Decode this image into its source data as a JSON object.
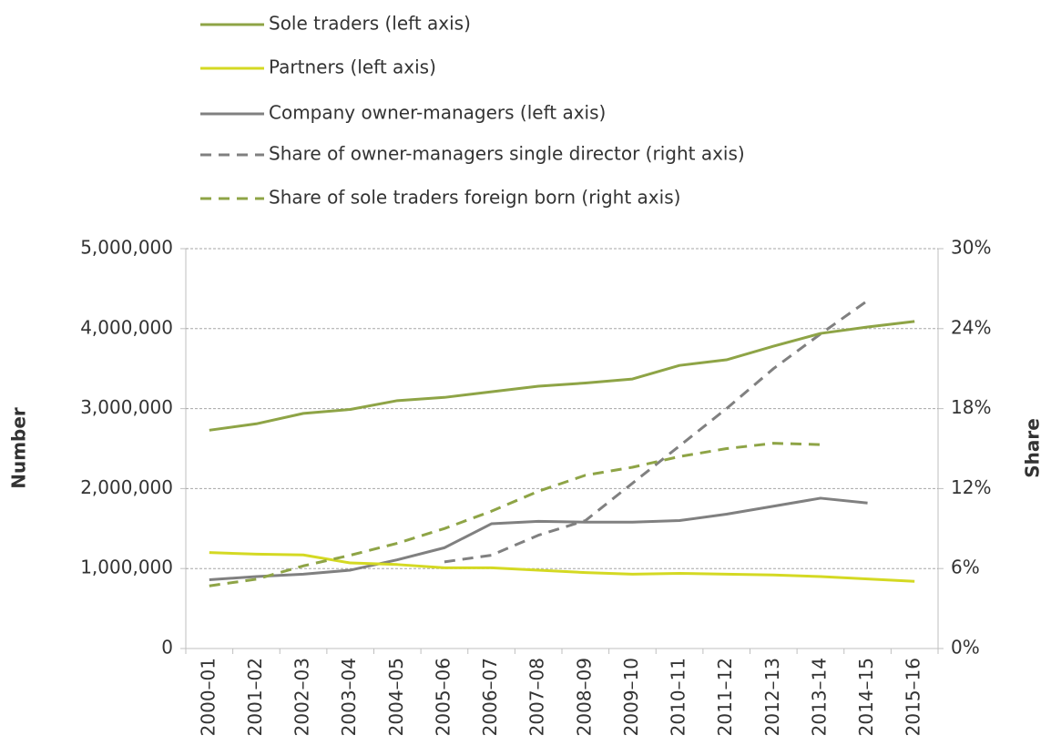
{
  "chart_data": {
    "type": "line",
    "y_label": "Number",
    "y2_label": "Share",
    "categories": [
      "2000–01",
      "2001–02",
      "2002–03",
      "2003–04",
      "2004–05",
      "2005–06",
      "2006–07",
      "2007–08",
      "2008–09",
      "2009–10",
      "2010–11",
      "2011–12",
      "2012–13",
      "2013–14",
      "2014–15",
      "2015–16"
    ],
    "ylim": [
      0,
      5000000
    ],
    "yticks": [
      0,
      {
        "value": 1000000,
        "label": "1,000,000"
      },
      {
        "value": 2000000,
        "label": "2,000,000"
      },
      {
        "value": 3000000,
        "label": "3,000,000"
      },
      {
        "value": 4000000,
        "label": "4,000,000"
      },
      {
        "value": 5000000,
        "label": "5,000,000"
      }
    ],
    "y2lim": [
      0,
      30
    ],
    "y2ticks": [
      {
        "value": 0,
        "label": "0%"
      },
      {
        "value": 6,
        "label": "6%"
      },
      {
        "value": 12,
        "label": "12%"
      },
      {
        "value": 18,
        "label": "18%"
      },
      {
        "value": 24,
        "label": "24%"
      },
      {
        "value": 30,
        "label": "30%"
      }
    ],
    "grid": true,
    "series": [
      {
        "name": "Sole traders (left axis)",
        "color": "#8ea446",
        "dash": false,
        "values": [
          2730000,
          2810000,
          2940000,
          2990000,
          3100000,
          3140000,
          3210000,
          3280000,
          3320000,
          3370000,
          3540000,
          3610000,
          3780000,
          3940000,
          4020000,
          4090000
        ]
      },
      {
        "name": "Partners (left axis)",
        "color": "#d4d923",
        "dash": false,
        "values": [
          1200000,
          1180000,
          1170000,
          1070000,
          1050000,
          1010000,
          1010000,
          980000,
          950000,
          930000,
          940000,
          930000,
          920000,
          900000,
          870000,
          840000
        ]
      },
      {
        "name": "Company owner-managers (left axis)",
        "color": "#808080",
        "dash": false,
        "values": [
          860000,
          900000,
          930000,
          980000,
          1110000,
          1260000,
          1560000,
          1590000,
          1580000,
          1580000,
          1600000,
          1680000,
          1780000,
          1880000,
          1820000,
          null
        ]
      },
      {
        "name": "Share of owner-managers single director (right axis)",
        "color": "#808080",
        "dash": true,
        "axis": "y2",
        "values": [
          null,
          null,
          null,
          null,
          null,
          6.5,
          7.0,
          8.5,
          9.6,
          12.4,
          15.2,
          18.0,
          21.0,
          23.6,
          26.1,
          null
        ]
      },
      {
        "name": "Share of sole traders foreign born (right axis)",
        "color": "#8ea446",
        "dash": true,
        "axis": "y2",
        "values": [
          4.7,
          5.2,
          6.2,
          7.0,
          7.9,
          9.0,
          10.3,
          11.8,
          13.0,
          13.6,
          14.4,
          15.0,
          15.4,
          15.3,
          null,
          null
        ]
      }
    ]
  }
}
